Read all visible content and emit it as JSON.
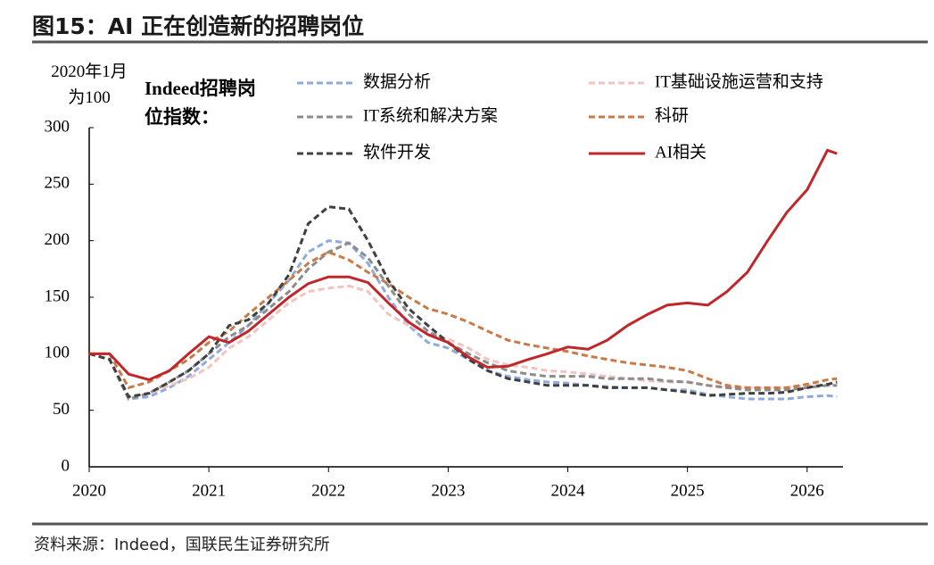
{
  "chart_data": {
    "type": "line",
    "title": "图15：AI 正在创造新的招聘岗位",
    "y_label": "2020年1月为100",
    "legend_title": "Indeed招聘岗位指数：",
    "source": "资料来源：Indeed，国联民生证券研究所",
    "x": [
      2020,
      2020.17,
      2020.33,
      2020.5,
      2020.67,
      2020.83,
      2021,
      2021.17,
      2021.33,
      2021.5,
      2021.67,
      2021.83,
      2022,
      2022.17,
      2022.33,
      2022.5,
      2022.67,
      2022.83,
      2023,
      2023.17,
      2023.33,
      2023.5,
      2023.67,
      2023.83,
      2024,
      2024.17,
      2024.33,
      2024.5,
      2024.67,
      2024.83,
      2025,
      2025.17,
      2025.33,
      2025.5,
      2025.67,
      2025.83,
      2026,
      2026.17,
      2026.25
    ],
    "xlim": [
      2020,
      2026.3
    ],
    "xticks": [
      2020,
      2021,
      2022,
      2023,
      2024,
      2025,
      2026
    ],
    "ylim": [
      0,
      300
    ],
    "yticks": [
      0,
      50,
      100,
      150,
      200,
      250,
      300
    ],
    "series": [
      {
        "name": "数据分析",
        "color": "#8faadc",
        "dashed": true,
        "values": [
          100,
          95,
          60,
          62,
          70,
          80,
          95,
          110,
          125,
          145,
          165,
          190,
          200,
          198,
          180,
          150,
          125,
          110,
          105,
          95,
          85,
          80,
          77,
          75,
          74,
          72,
          71,
          70,
          70,
          68,
          68,
          64,
          62,
          60,
          60,
          60,
          62,
          63,
          62
        ]
      },
      {
        "name": "IT基础设施运营和支持",
        "color": "#f2c4c0",
        "dashed": true,
        "values": [
          100,
          95,
          62,
          65,
          72,
          78,
          88,
          105,
          115,
          130,
          145,
          155,
          158,
          160,
          155,
          135,
          125,
          118,
          113,
          105,
          95,
          90,
          88,
          85,
          84,
          82,
          80,
          78,
          76,
          75,
          75,
          72,
          70,
          70,
          70,
          70,
          72,
          72,
          72
        ]
      },
      {
        "name": "IT系统和解决方案",
        "color": "#8c8c8c",
        "dashed": true,
        "values": [
          100,
          95,
          60,
          65,
          75,
          85,
          100,
          115,
          125,
          140,
          155,
          175,
          190,
          198,
          185,
          160,
          135,
          120,
          110,
          100,
          92,
          85,
          82,
          80,
          80,
          80,
          78,
          78,
          78,
          76,
          75,
          72,
          70,
          68,
          68,
          68,
          70,
          72,
          72
        ]
      },
      {
        "name": "科研",
        "color": "#c97a47",
        "dashed": true,
        "values": [
          100,
          100,
          70,
          75,
          85,
          95,
          110,
          120,
          135,
          150,
          165,
          180,
          190,
          183,
          172,
          162,
          150,
          140,
          135,
          128,
          120,
          112,
          108,
          105,
          102,
          98,
          95,
          92,
          90,
          88,
          85,
          78,
          72,
          70,
          70,
          70,
          73,
          77,
          78
        ]
      },
      {
        "name": "软件开发",
        "color": "#404040",
        "dashed": true,
        "values": [
          100,
          95,
          62,
          65,
          75,
          85,
          100,
          125,
          130,
          145,
          170,
          215,
          230,
          228,
          200,
          165,
          140,
          125,
          110,
          95,
          85,
          78,
          75,
          72,
          72,
          72,
          70,
          70,
          70,
          68,
          66,
          63,
          64,
          65,
          65,
          66,
          70,
          73,
          75
        ]
      },
      {
        "name": "AI相关",
        "color": "#c0262a",
        "dashed": false,
        "values": [
          100,
          100,
          82,
          77,
          85,
          100,
          115,
          110,
          120,
          135,
          150,
          162,
          168,
          168,
          163,
          145,
          128,
          117,
          110,
          97,
          88,
          89,
          95,
          100,
          106,
          104,
          112,
          125,
          135,
          143,
          145,
          143,
          155,
          172,
          200,
          225,
          245,
          280,
          277
        ]
      }
    ]
  }
}
